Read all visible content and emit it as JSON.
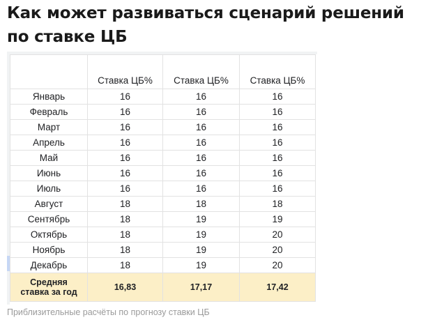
{
  "title": "Как может развиваться сценарий решений по ставке ЦБ",
  "table": {
    "columns": [
      "",
      "Ставка ЦБ%",
      "Ставка ЦБ%",
      "Ставка ЦБ%"
    ],
    "rows": [
      {
        "month": "Январь",
        "values": [
          "16",
          "16",
          "16"
        ]
      },
      {
        "month": "Февраль",
        "values": [
          "16",
          "16",
          "16"
        ]
      },
      {
        "month": "Март",
        "values": [
          "16",
          "16",
          "16"
        ]
      },
      {
        "month": "Апрель",
        "values": [
          "16",
          "16",
          "16"
        ]
      },
      {
        "month": "Май",
        "values": [
          "16",
          "16",
          "16"
        ]
      },
      {
        "month": "Июнь",
        "values": [
          "16",
          "16",
          "16"
        ]
      },
      {
        "month": "Июль",
        "values": [
          "16",
          "16",
          "16"
        ]
      },
      {
        "month": "Август",
        "values": [
          "18",
          "18",
          "18"
        ]
      },
      {
        "month": "Сентябрь",
        "values": [
          "18",
          "19",
          "19"
        ]
      },
      {
        "month": "Октябрь",
        "values": [
          "18",
          "19",
          "20"
        ]
      },
      {
        "month": "Ноябрь",
        "values": [
          "18",
          "19",
          "20"
        ]
      },
      {
        "month": "Декабрь",
        "values": [
          "18",
          "19",
          "20"
        ]
      }
    ],
    "average": {
      "label_line1": "Средняя",
      "label_line2": "ставка за год",
      "values": [
        "16,83",
        "17,17",
        "17,42"
      ]
    }
  },
  "caption": "Приблизительные расчёты по прогнозу ставки ЦБ"
}
